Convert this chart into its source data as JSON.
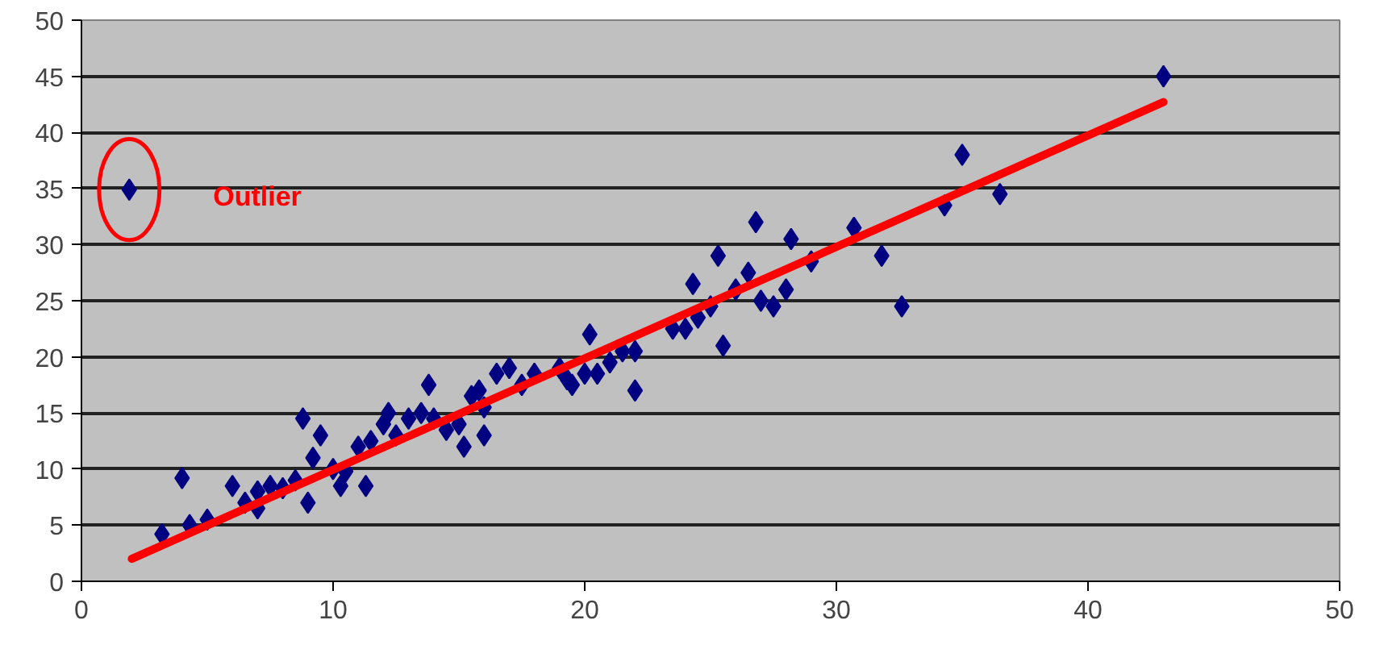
{
  "chart_data": {
    "type": "scatter",
    "xlim": [
      0,
      50
    ],
    "ylim": [
      0,
      50
    ],
    "xticks": [
      0,
      10,
      20,
      30,
      40,
      50
    ],
    "yticks": [
      0,
      5,
      10,
      15,
      20,
      25,
      30,
      35,
      40,
      45,
      50
    ],
    "grid": "y",
    "annotations": [
      "Outlier"
    ],
    "series": [
      {
        "color": "#000080",
        "marker": "diamond",
        "x": [
          1.9,
          3.2,
          4,
          4.3,
          5,
          6,
          6.5,
          7,
          7,
          7.5,
          8,
          8.5,
          8.8,
          9,
          9.2,
          9.5,
          10,
          10.3,
          10.5,
          11,
          11.3,
          11.5,
          12,
          12.2,
          12.5,
          13,
          13.5,
          13.8,
          14,
          14.5,
          15,
          15.2,
          15.5,
          15.8,
          16,
          16,
          16.5,
          17,
          17.5,
          18,
          19,
          19.3,
          19.5,
          20,
          20.2,
          20.5,
          21,
          21.5,
          22,
          22,
          23.5,
          24,
          24.3,
          24.5,
          25,
          25.3,
          25.5,
          26,
          26.5,
          26.8,
          27,
          27.5,
          28,
          28.2,
          29,
          30.7,
          31.8,
          32.6,
          34.3,
          35,
          36.5,
          43
        ],
        "values": [
          34.9,
          4.2,
          9.2,
          5,
          5.5,
          8.5,
          7,
          8,
          6.5,
          8.5,
          8.3,
          9,
          14.5,
          7,
          11,
          13,
          10,
          8.5,
          9.8,
          12,
          8.5,
          12.5,
          14,
          15,
          13,
          14.5,
          15,
          17.5,
          14.5,
          13.5,
          14,
          12,
          16.5,
          17,
          13,
          15.5,
          18.5,
          19,
          17.5,
          18.5,
          19,
          18,
          17.5,
          18.5,
          22,
          18.5,
          19.5,
          20.5,
          17,
          20.5,
          22.5,
          22.5,
          26.5,
          23.5,
          24.5,
          29,
          21,
          26,
          27.5,
          32,
          25,
          24.5,
          26,
          30.5,
          28.5,
          31.5,
          29,
          24.5,
          33.5,
          38,
          34.5,
          45
        ]
      },
      {
        "type": "line",
        "color": "#ff0000",
        "marker": "none",
        "x": [
          2,
          43
        ],
        "values": [
          2,
          42.7
        ]
      }
    ]
  }
}
